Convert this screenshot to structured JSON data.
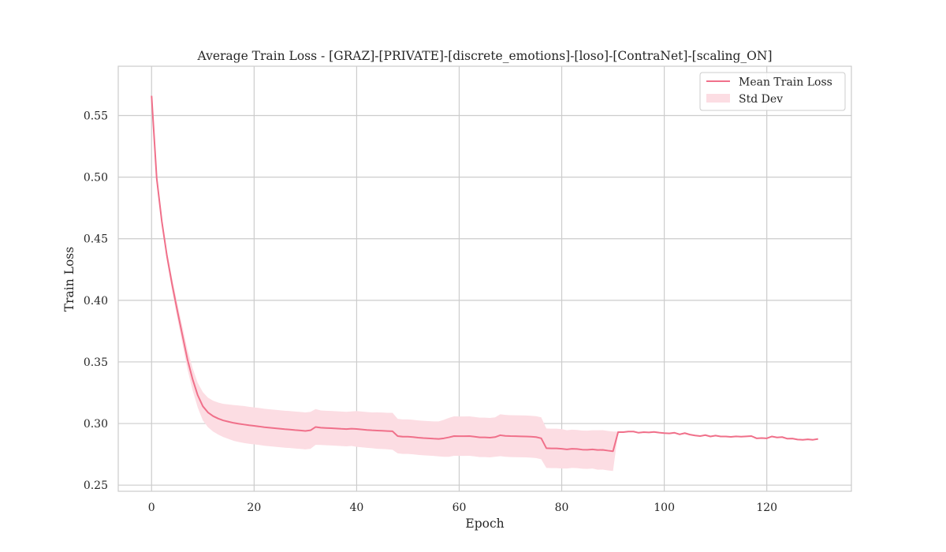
{
  "chart_data": {
    "type": "line",
    "title": "Average Train Loss - [GRAZ]-[PRIVATE]-[discrete_emotions]-[loso]-[ContraNet]-[scaling_ON]",
    "xlabel": "Epoch",
    "ylabel": "Train Loss",
    "xlim": [
      -6.5,
      136.5
    ],
    "ylim": [
      0.245,
      0.59
    ],
    "xticks": [
      0,
      20,
      40,
      60,
      80,
      100,
      120
    ],
    "yticks": [
      0.25,
      0.3,
      0.35,
      0.4,
      0.45,
      0.5,
      0.55
    ],
    "xtick_labels": [
      "0",
      "20",
      "40",
      "60",
      "80",
      "100",
      "120"
    ],
    "ytick_labels": [
      "0.25",
      "0.30",
      "0.35",
      "0.40",
      "0.45",
      "0.50",
      "0.55"
    ],
    "grid": true,
    "legend_position": "top-right",
    "colors": {
      "line": "#f0708a",
      "band": "#fcdde3",
      "grid": "#cccccc",
      "spine": "#cccccc"
    },
    "legend": [
      {
        "label": "Mean Train Loss",
        "kind": "line"
      },
      {
        "label": "Std Dev",
        "kind": "band"
      }
    ],
    "series": [
      {
        "name": "Mean Train Loss",
        "x": [
          0,
          1,
          2,
          3,
          4,
          5,
          6,
          7,
          8,
          9,
          10,
          11,
          12,
          13,
          14,
          15,
          16,
          17,
          18,
          19,
          20,
          21,
          22,
          23,
          24,
          25,
          26,
          27,
          28,
          29,
          30,
          31,
          32,
          33,
          34,
          35,
          36,
          37,
          38,
          39,
          40,
          41,
          42,
          43,
          44,
          45,
          46,
          47,
          48,
          49,
          50,
          51,
          52,
          53,
          54,
          55,
          56,
          57,
          58,
          59,
          60,
          61,
          62,
          63,
          64,
          65,
          66,
          67,
          68,
          69,
          70,
          71,
          72,
          73,
          74,
          75,
          76,
          77,
          78,
          79,
          80,
          81,
          82,
          83,
          84,
          85,
          86,
          87,
          88,
          89,
          90,
          91,
          92,
          93,
          94,
          95,
          96,
          97,
          98,
          99,
          100,
          101,
          102,
          103,
          104,
          105,
          106,
          107,
          108,
          109,
          110,
          111,
          112,
          113,
          114,
          115,
          116,
          117,
          118,
          119,
          120,
          121,
          122,
          123,
          124,
          125,
          126,
          127,
          128,
          129,
          130
        ],
        "y": [
          0.566,
          0.499,
          0.464,
          0.436,
          0.413,
          0.392,
          0.372,
          0.352,
          0.336,
          0.323,
          0.314,
          0.309,
          0.306,
          0.304,
          0.3025,
          0.3015,
          0.3005,
          0.2998,
          0.2992,
          0.2986,
          0.2981,
          0.2976,
          0.297,
          0.2966,
          0.2962,
          0.2958,
          0.2954,
          0.2951,
          0.2947,
          0.2944,
          0.294,
          0.2945,
          0.2972,
          0.2966,
          0.2964,
          0.2962,
          0.296,
          0.2957,
          0.2955,
          0.2958,
          0.2956,
          0.2952,
          0.2948,
          0.2945,
          0.2943,
          0.2941,
          0.2939,
          0.2937,
          0.2898,
          0.2893,
          0.2893,
          0.289,
          0.2885,
          0.2882,
          0.288,
          0.2877,
          0.2875,
          0.288,
          0.2888,
          0.2898,
          0.2897,
          0.2897,
          0.2898,
          0.2893,
          0.2888,
          0.2888,
          0.2885,
          0.289,
          0.2905,
          0.29,
          0.2898,
          0.2897,
          0.2896,
          0.2895,
          0.2893,
          0.289,
          0.288,
          0.28,
          0.2798,
          0.2798,
          0.2795,
          0.279,
          0.2795,
          0.2793,
          0.2788,
          0.2787,
          0.279,
          0.2785,
          0.2786,
          0.278,
          0.2775,
          0.293,
          0.293,
          0.2935,
          0.2935,
          0.2925,
          0.293,
          0.2928,
          0.2932,
          0.2926,
          0.2922,
          0.292,
          0.2925,
          0.2912,
          0.2922,
          0.291,
          0.2903,
          0.2898,
          0.2906,
          0.2895,
          0.2902,
          0.2895,
          0.2895,
          0.2892,
          0.2896,
          0.2893,
          0.2896,
          0.2898,
          0.288,
          0.2882,
          0.288,
          0.2895,
          0.2887,
          0.289,
          0.2877,
          0.2878,
          0.287,
          0.2868,
          0.2872,
          0.2868,
          0.2875
        ],
        "std": [
          0.001,
          0.002,
          0.003,
          0.004,
          0.005,
          0.006,
          0.007,
          0.008,
          0.009,
          0.01,
          0.0115,
          0.012,
          0.0125,
          0.013,
          0.0135,
          0.014,
          0.0145,
          0.0148,
          0.015,
          0.015,
          0.015,
          0.015,
          0.015,
          0.015,
          0.015,
          0.015,
          0.015,
          0.015,
          0.015,
          0.015,
          0.015,
          0.015,
          0.0145,
          0.014,
          0.014,
          0.014,
          0.014,
          0.014,
          0.014,
          0.014,
          0.0145,
          0.0145,
          0.0145,
          0.0145,
          0.0148,
          0.0148,
          0.0148,
          0.015,
          0.014,
          0.014,
          0.014,
          0.014,
          0.014,
          0.014,
          0.014,
          0.014,
          0.0142,
          0.015,
          0.0158,
          0.016,
          0.016,
          0.016,
          0.016,
          0.016,
          0.016,
          0.016,
          0.016,
          0.016,
          0.017,
          0.017,
          0.017,
          0.017,
          0.017,
          0.017,
          0.017,
          0.017,
          0.017,
          0.016,
          0.016,
          0.016,
          0.016,
          0.0155,
          0.0155,
          0.0155,
          0.0155,
          0.0155,
          0.0155,
          0.016,
          0.016,
          0.016,
          0.016,
          0.0005,
          0.0005,
          0.0005,
          0.0005,
          0.0005,
          0.0005,
          0.0005,
          0.0005,
          0.0005,
          0.0005,
          0.0005,
          0.0005,
          0.0005,
          0.0005,
          0.0005,
          0.0005,
          0.0005,
          0.0005,
          0.0005,
          0.0005,
          0.0005,
          0.0005,
          0.0005,
          0.0005,
          0.0005,
          0.0005,
          0.0005,
          0.0005,
          0.0005,
          0.0005,
          0.0005,
          0.0005,
          0.0005,
          0.0005,
          0.0005,
          0.0005,
          0.0005,
          0.0005,
          0.0005,
          0.0005
        ]
      }
    ]
  }
}
